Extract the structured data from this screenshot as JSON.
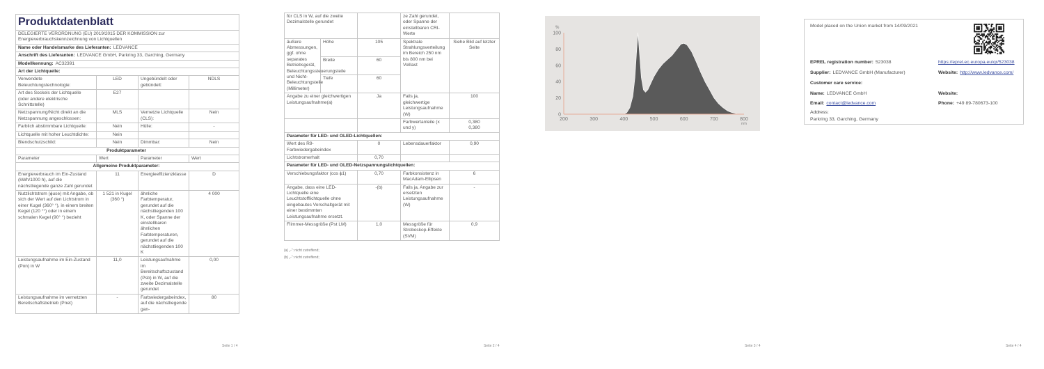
{
  "page1": {
    "footer": "Seite 1 / 4",
    "rows": [
      [
        {
          "t": "Produktdatenblatt",
          "cs": 4,
          "cls": "title"
        }
      ],
      [
        {
          "t": "DELEGIERTE VERORDNUNG (EU) 2019/2015 DER KOMMISSION zur\nEnergieverbrauchskennzeichnung von Lichtquellen",
          "cs": 4,
          "cls": "sub"
        }
      ],
      [
        {
          "b": "Name oder Handelsmarke des Lieferanten:",
          "t": "LEDVANCE",
          "cs": 4
        }
      ],
      [
        {
          "b": "Anschrift des Lieferanten:",
          "t": "LEDVANCE GmbH, Parkring 33, Garching, Germany",
          "cs": 4
        }
      ],
      [
        {
          "b": "Modellkennung:",
          "t": "AC32391",
          "cs": 4
        }
      ],
      [
        {
          "b": "Art der Lichtquelle:",
          "cs": 4
        }
      ],
      [
        {
          "t": "Verwendete Beleuchtungstechnologie:"
        },
        {
          "t": "LED",
          "cls": "val"
        },
        {
          "t": "Ungebündelt oder gebündelt:"
        },
        {
          "t": "NDLS",
          "cls": "val"
        }
      ],
      [
        {
          "t": "Art des Sockels der Lichtquelle\n(oder andere elektrische Schnittstelle)"
        },
        {
          "t": "E27",
          "cls": "val"
        },
        {
          "t": ""
        },
        {
          "t": ""
        }
      ],
      [
        {
          "t": "Netzspannung/Nicht direkt an die Netzspannung angeschlossen:"
        },
        {
          "t": "MLS",
          "cls": "val"
        },
        {
          "t": "Vernetzte Lichtquelle (CLS):"
        },
        {
          "t": "Nein",
          "cls": "val"
        }
      ],
      [
        {
          "t": "Farblich abstimmbare Lichtquelle:"
        },
        {
          "t": "Nein",
          "cls": "val"
        },
        {
          "t": "Hülle:"
        },
        {
          "t": "-",
          "cls": "val"
        }
      ],
      [
        {
          "t": "Lichtquelle mit hoher Leuchtdichte:"
        },
        {
          "t": "Nein",
          "cls": "val"
        },
        {
          "t": ""
        },
        {
          "t": ""
        }
      ],
      [
        {
          "t": "Blendschutzschild:"
        },
        {
          "t": "Nein",
          "cls": "val"
        },
        {
          "t": "Dimmbar:"
        },
        {
          "t": "Nein",
          "cls": "val"
        }
      ],
      [
        {
          "b": "Produktparameter",
          "cs": 4,
          "cls": "center"
        }
      ],
      [
        {
          "t": "Parameter"
        },
        {
          "t": "Wert"
        },
        {
          "t": "Parameter"
        },
        {
          "t": "Wert"
        }
      ],
      [
        {
          "b": "Allgemeine Produktparameter:",
          "cs": 4,
          "cls": "center"
        }
      ],
      [
        {
          "t": "Energieverbrauch im Ein-Zustand (kWh/1000 h), auf die nächstliegende ganze Zahl gerundet"
        },
        {
          "t": "11",
          "cls": "val"
        },
        {
          "t": "Energieeffizienzklasse"
        },
        {
          "t": "D",
          "cls": "val"
        }
      ],
      [
        {
          "t": "Nutzlichtstrom (ϕuse) mit Angabe, ob sich der Wert auf den Lichtstrom in einer Kugel (360° °), in einem breiten Kegel (120 °°) oder in einem schmalen Kegel (90° °) bezieht"
        },
        {
          "t": "1 521 in Kugel (360 °)",
          "cls": "val"
        },
        {
          "t": "ähnliche Farbtemperatur, gerundet auf die nächstliegenden 100 K, oder Spanne der einstellbaren ähnlichen Farbtemperaturen, gerundet auf die nächstliegenden 100 K"
        },
        {
          "t": "4 000",
          "cls": "val"
        }
      ],
      [
        {
          "t": "Leistungsaufnahme im Ein-Zustand (Pon) in W"
        },
        {
          "t": "11,0",
          "cls": "val"
        },
        {
          "t": "Leistungsaufnahme im Bereitschaftszustand (Psb) in W, auf die zweite Dezimalstelle gerundet"
        },
        {
          "t": "0,00",
          "cls": "val"
        }
      ],
      [
        {
          "t": "Leistungsaufnahme im vernetzten Bereitschaftsbetrieb (Pnet)"
        },
        {
          "t": "-",
          "cls": "val"
        },
        {
          "t": "Farbwiedergabeindex, auf die nächstliegende gan-"
        },
        {
          "t": "80",
          "cls": "val"
        }
      ]
    ]
  },
  "page2": {
    "footer": "Seite 2 / 4",
    "rows": [
      [
        {
          "t": "für CLS in W, auf die zweite Dezimalstelle gerundet",
          "cs": 2
        },
        {
          "t": ""
        },
        {
          "t": "ze Zahl gerundet, oder Spanne der einstellbaren CRI-Werte"
        },
        {
          "t": ""
        }
      ],
      [
        {
          "t": "äußere Abmessungen, ggf. ohne separates Betriebsgerät, Beleuchtungssteuerungsteile und Nicht-Beleuchtungsteile (Millimeter)",
          "rs": 3
        },
        {
          "t": "Höhe"
        },
        {
          "t": "105",
          "cls": "val"
        },
        {
          "t": "Spektrale Strahlungsverteilung im Bereich 250 nm bis 800 nm bei Volllast",
          "rs": 3
        },
        {
          "t": "Siehe Bild auf letzter Seite",
          "cls": "val",
          "rs": 3
        }
      ],
      [
        {
          "t": "Breite"
        },
        {
          "t": "60",
          "cls": "val"
        }
      ],
      [
        {
          "t": "Tiefe"
        },
        {
          "t": "60",
          "cls": "val"
        }
      ],
      [
        {
          "t": "Angabe zu einer gleichwertigen Leistungsaufnahme(a)",
          "cs": 2
        },
        {
          "t": "Ja",
          "cls": "val"
        },
        {
          "t": "Falls ja, gleichwertige Leistungsaufnahme (W)"
        },
        {
          "t": "100",
          "cls": "val"
        }
      ],
      [
        {
          "t": "",
          "cs": 2
        },
        {
          "t": ""
        },
        {
          "t": "Farbwertanteile (x und y)"
        },
        {
          "t": "0,380\n0,380",
          "cls": "val"
        }
      ],
      [
        {
          "b": "Parameter für LED- und OLED-Lichtquellen:",
          "cs": 5
        }
      ],
      [
        {
          "t": "Wert des R9-Farbwiedergabeindex",
          "cs": 2
        },
        {
          "t": "0",
          "cls": "val"
        },
        {
          "t": "Lebensdauerfaktor"
        },
        {
          "t": "0,90",
          "cls": "val"
        }
      ],
      [
        {
          "t": "Lichtstromerhalt",
          "cs": 2
        },
        {
          "t": "0,70",
          "cls": "val"
        },
        {
          "t": ""
        },
        {
          "t": ""
        }
      ],
      [
        {
          "b": "Parameter für LED- und OLED-Netzspannungslichtquellen:",
          "cs": 5
        }
      ],
      [
        {
          "t": "Verschiebungsfaktor (cos ϕ1)",
          "cs": 2
        },
        {
          "t": "0,70",
          "cls": "val"
        },
        {
          "t": "Farbkonsistenz in MacAdam-Ellipsen"
        },
        {
          "t": "6",
          "cls": "val"
        }
      ],
      [
        {
          "t": "Angabe, dass eine LED-Lichtquelle eine Leuchtstofflichtquelle ohne eingebautes Vorschaltgerät mit einer bestimmten Leistungsaufnahme ersetzt.",
          "cs": 2
        },
        {
          "t": "-(b)",
          "cls": "val"
        },
        {
          "t": "Falls ja, Angabe zur ersetzten Leistungsaufnahme (W)"
        },
        {
          "t": "-",
          "cls": "val"
        }
      ],
      [
        {
          "t": "Flimmer-Messgröße (Pst LM)",
          "cs": 2
        },
        {
          "t": "1,0",
          "cls": "val"
        },
        {
          "t": "Messgröße für Stroboskop-Effekte (SVM)"
        },
        {
          "t": "0,9",
          "cls": "val"
        }
      ]
    ],
    "notes": [
      "(a) „-“: nicht zutreffend;",
      "(b) „-“: nicht zutreffend;"
    ]
  },
  "page3": {
    "footer": "Seite 3 / 4",
    "colors": {
      "background": "#e6e4e2",
      "fill": "#5a5a5a",
      "axis": "#e5ab98"
    }
  },
  "chart_data": {
    "type": "area",
    "xlabel": "nm",
    "ylabel": "%",
    "xlim": [
      200,
      800
    ],
    "ylim": [
      0,
      100
    ],
    "x_ticks": [
      200,
      300,
      400,
      500,
      600,
      700,
      800
    ],
    "y_ticks": [
      0,
      20,
      40,
      60,
      80,
      100
    ],
    "grid": false,
    "x": [
      400,
      410,
      420,
      430,
      437,
      442,
      447,
      452,
      458,
      465,
      472,
      480,
      490,
      500,
      515,
      530,
      545,
      560,
      575,
      590,
      600,
      610,
      625,
      640,
      655,
      670,
      685,
      700,
      715,
      730,
      745,
      760,
      780
    ],
    "y": [
      0,
      2,
      8,
      22,
      45,
      75,
      100,
      75,
      45,
      30,
      27,
      30,
      38,
      46,
      55,
      62,
      67,
      72,
      79,
      86,
      87,
      85,
      77,
      65,
      52,
      40,
      30,
      20,
      13,
      8,
      4,
      2,
      0
    ]
  },
  "page4": {
    "footer": "Seite 4 / 4",
    "market": "Model placed on the Union market from 14/09/2021",
    "qr_label": "EPREL QR code",
    "eprel_label": "EPREL registration number:",
    "eprel_value": "523038",
    "eprel_link": "https://eprel.ec.europa.eu/qr/523038",
    "supplier_label": "Supplier:",
    "supplier_value": "LEDVANCE GmbH (Manufacturer)",
    "website_label": "Website:",
    "website_link": "http://www.ledvance.com/",
    "care_label": "Customer care service:",
    "name_label": "Name:",
    "name_value": "LEDVANCE GmbH",
    "website2_label": "Website:",
    "email_label": "Email:",
    "email_value": "contact@ledvance.com",
    "phone_label": "Phone:",
    "phone_value": "+49 89-780673-100",
    "address_label": "Address:",
    "address_value": "Parkring 33, Garching, Germany",
    "link_color": "#3b4ea0"
  }
}
